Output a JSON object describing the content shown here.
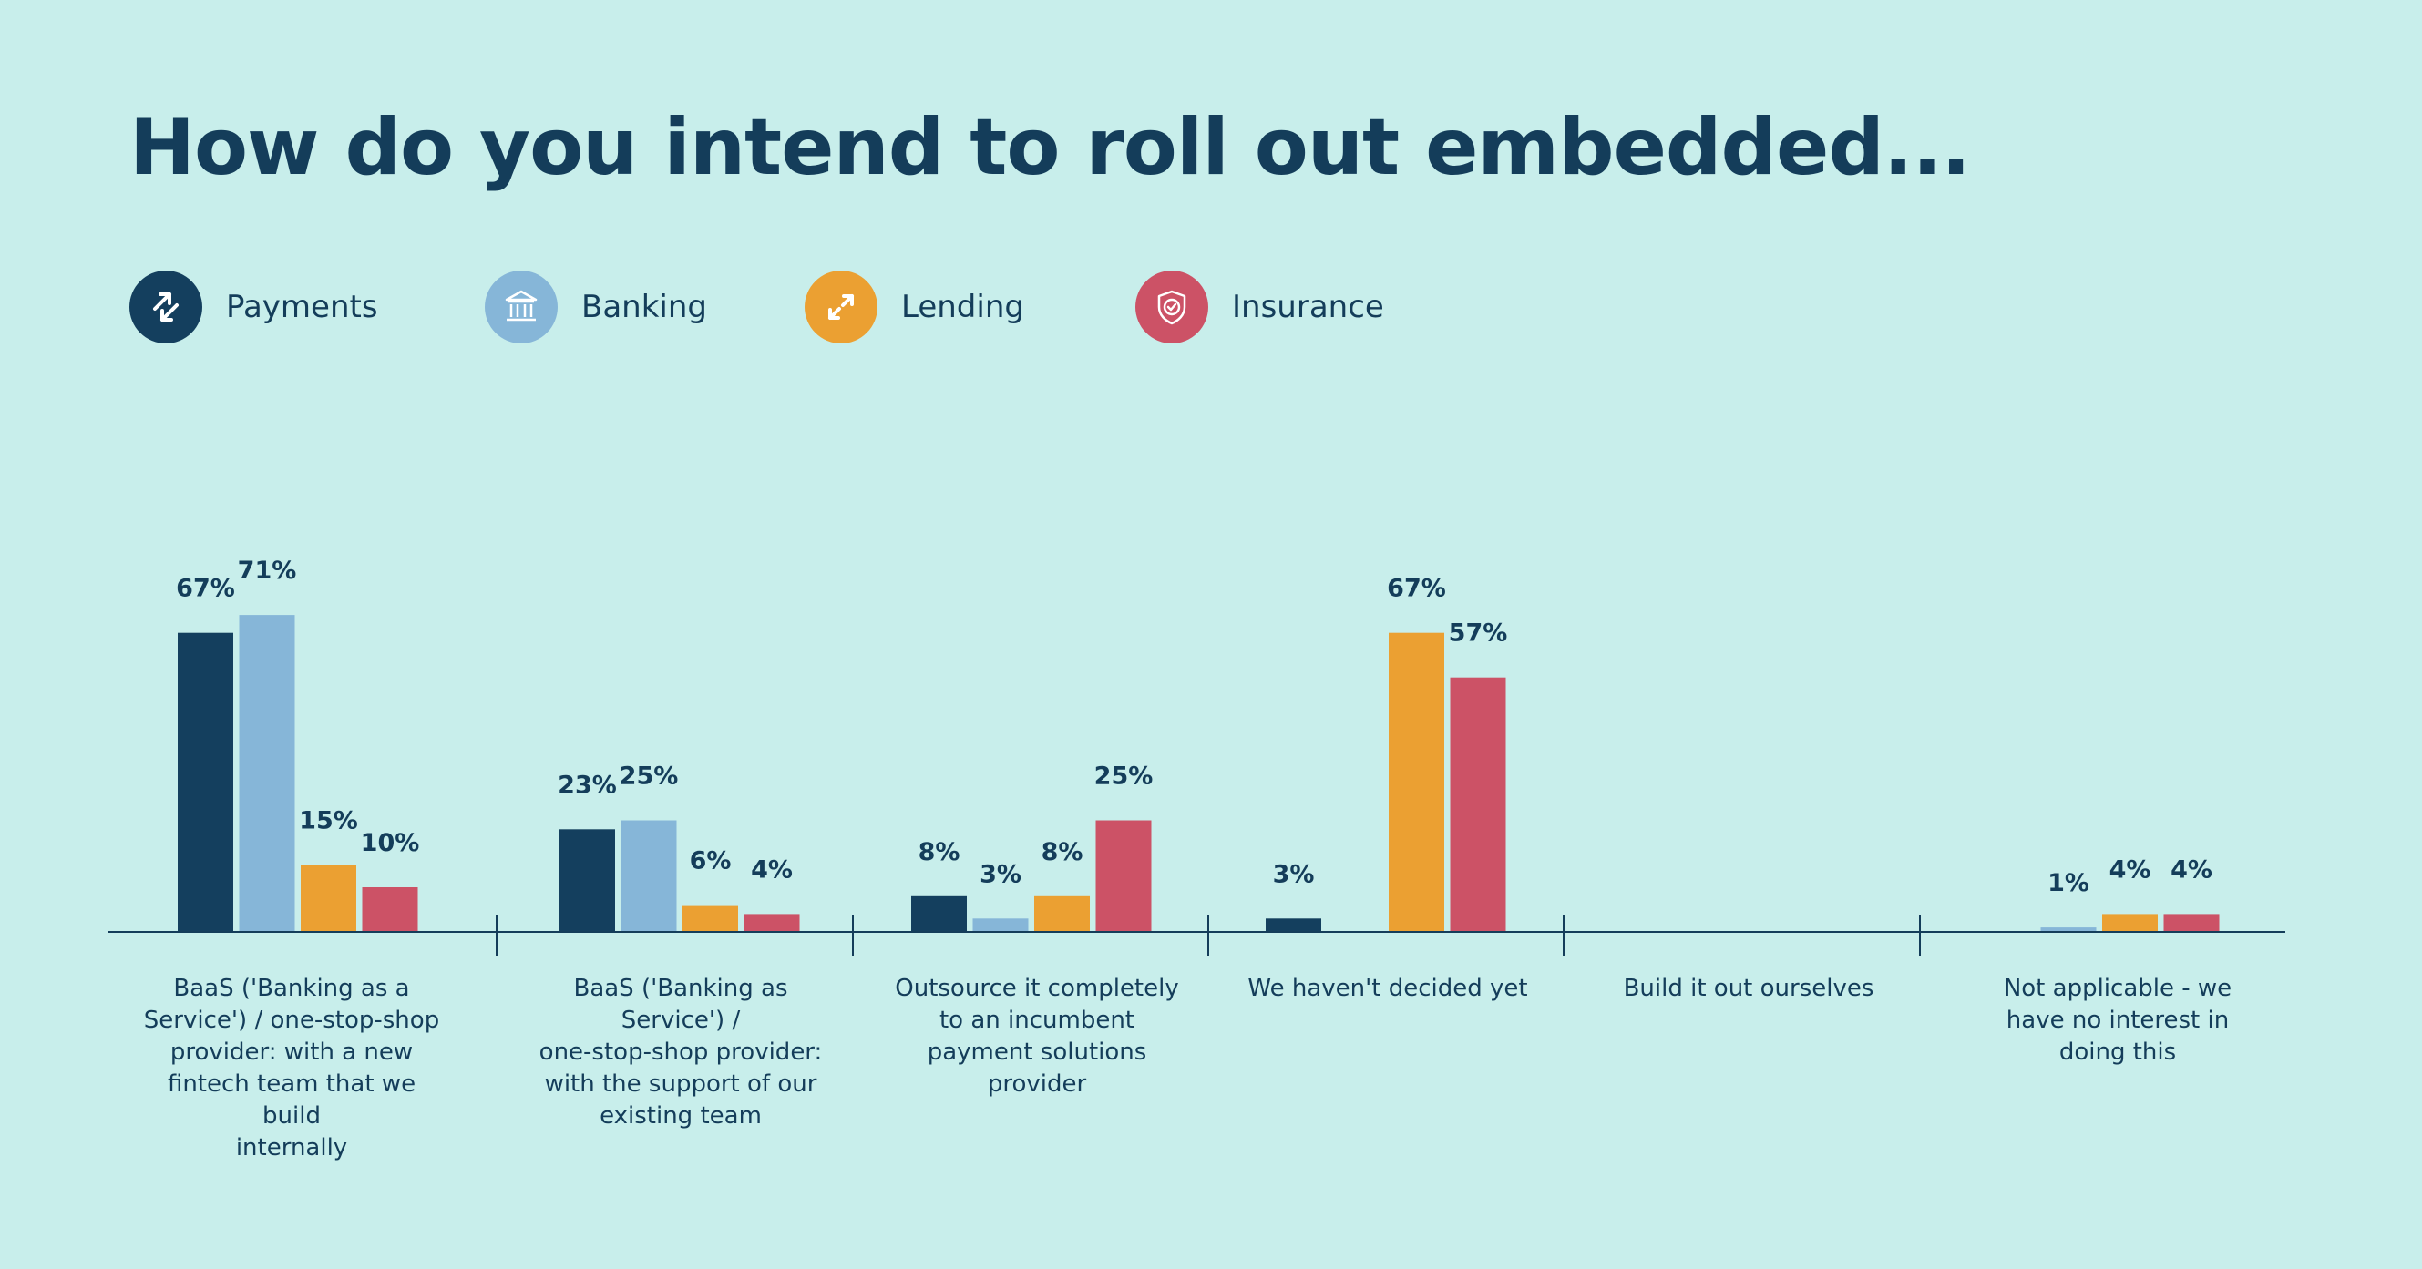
{
  "title": "How do you intend to roll out embedded...",
  "legend": [
    {
      "label": "Payments",
      "color": "#143f5e",
      "icon": "swap-arrows-icon"
    },
    {
      "label": "Banking",
      "color": "#86b6d8",
      "icon": "bank-building-icon"
    },
    {
      "label": "Lending",
      "color": "#eba032",
      "icon": "diagonal-arrows-icon"
    },
    {
      "label": "Insurance",
      "color": "#cc5266",
      "icon": "shield-check-icon"
    }
  ],
  "chart_data": {
    "type": "bar",
    "title": "How do you intend to roll out embedded...",
    "xlabel": "",
    "ylabel": "",
    "ylim": [
      0,
      71
    ],
    "value_suffix": "%",
    "categories": [
      "BaaS ('Banking as a Service') / one-stop-shop provider: with a new fintech team that we build internally",
      "BaaS ('Banking as Service') / one-stop-shop provider: with the support of our existing team",
      "Outsource it completely to an incumbent payment solutions provider",
      "We haven't decided yet",
      "Build it out ourselves",
      "Not applicable - we have no interest in doing this"
    ],
    "category_lines": [
      [
        "BaaS ('Banking as a",
        "Service') / one-stop-shop",
        "provider: with a new",
        "fintech team that we build",
        "internally"
      ],
      [
        "BaaS ('Banking as",
        "Service') /",
        "one-stop-shop provider:",
        "with the support of our",
        "existing team"
      ],
      [
        "Outsource it completely",
        "to an incumbent",
        "payment solutions",
        "provider"
      ],
      [
        "We haven't decided yet"
      ],
      [
        "Build it out ourselves"
      ],
      [
        "Not applicable - we",
        "have no interest in",
        "doing this"
      ]
    ],
    "series": [
      {
        "name": "Payments",
        "color": "#143f5e",
        "values": [
          67,
          23,
          8,
          3,
          null,
          null
        ]
      },
      {
        "name": "Banking",
        "color": "#86b6d8",
        "values": [
          71,
          25,
          3,
          null,
          null,
          1
        ]
      },
      {
        "name": "Lending",
        "color": "#eba032",
        "values": [
          15,
          6,
          8,
          67,
          null,
          4
        ]
      },
      {
        "name": "Insurance",
        "color": "#cc5266",
        "values": [
          10,
          4,
          25,
          57,
          null,
          4
        ]
      }
    ]
  }
}
